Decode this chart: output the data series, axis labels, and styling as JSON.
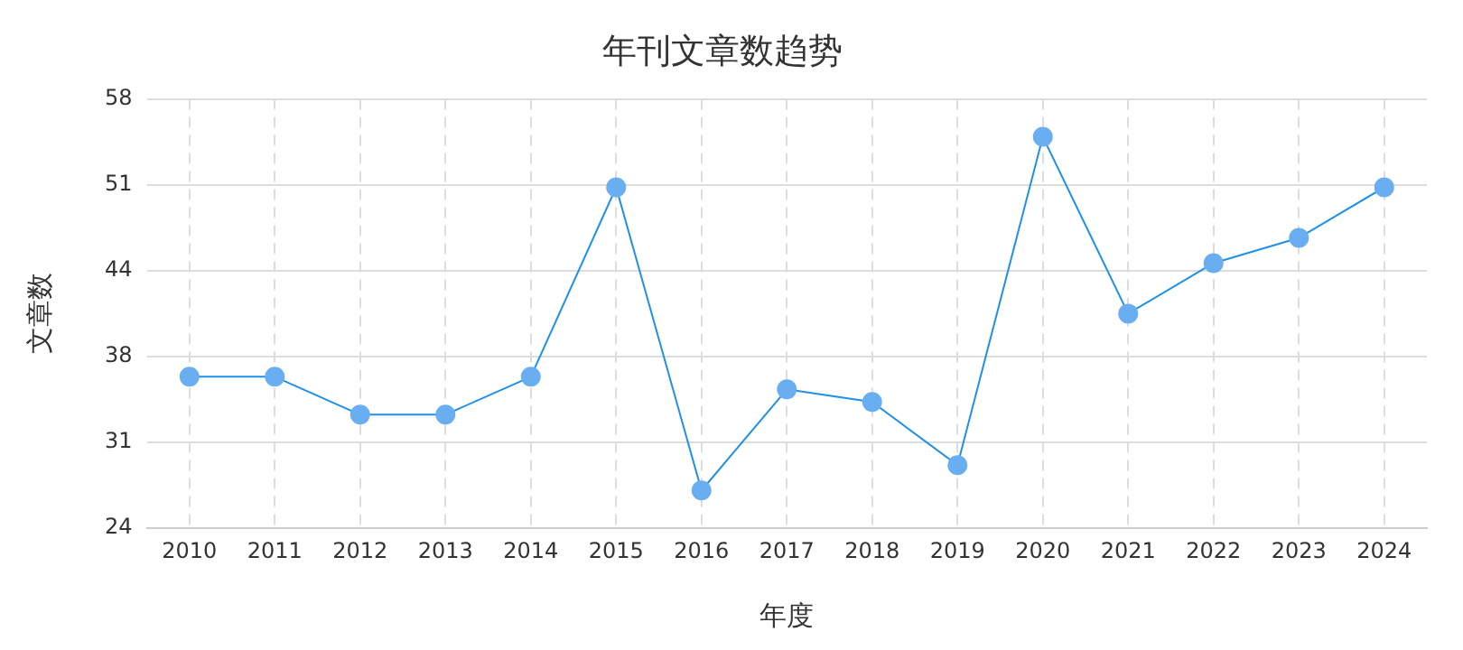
{
  "chart_data": {
    "type": "line",
    "title": "年刊文章数趋势",
    "xlabel": "年度",
    "ylabel": "文章数",
    "categories": [
      "2010",
      "2011",
      "2012",
      "2013",
      "2014",
      "2015",
      "2016",
      "2017",
      "2018",
      "2019",
      "2020",
      "2021",
      "2022",
      "2023",
      "2024"
    ],
    "series": [
      {
        "color": "#1e90e8",
        "values": [
          36,
          36,
          33,
          33,
          36,
          51,
          27,
          35,
          34,
          29,
          55,
          41,
          45,
          47,
          51
        ]
      }
    ],
    "ylim": [
      24,
      58
    ],
    "yticks": [
      24,
      {
        "value": 30.8,
        "label": "31"
      },
      {
        "value": 37.6,
        "label": "38"
      },
      {
        "value": 44.4,
        "label": "44"
      },
      {
        "value": 51.2,
        "label": "51"
      },
      58
    ],
    "grid": true,
    "marker": "circle",
    "line_style": "solid",
    "legend": false
  }
}
